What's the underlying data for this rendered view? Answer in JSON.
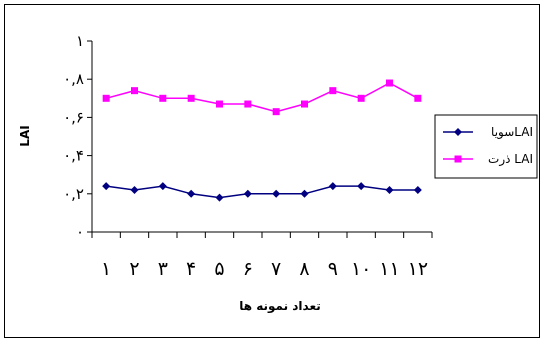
{
  "chart_data": {
    "type": "line",
    "title": "",
    "xlabel": "تعداد نمونه ها",
    "ylabel": "LAI",
    "categories": [
      "۱",
      "۲",
      "۳",
      "۴",
      "۵",
      "۶",
      "۷",
      "۸",
      "۹",
      "۱۰",
      "۱۱",
      "۱۲"
    ],
    "y_ticks": [
      0,
      0.2,
      0.4,
      0.6,
      0.8,
      1
    ],
    "y_tick_labels": [
      "۰",
      "۰,۲",
      "۰,۴",
      "۰,۶",
      "۰,۸",
      "۱"
    ],
    "ylim": [
      0,
      1
    ],
    "grid": false,
    "legend_position": "right",
    "series": [
      {
        "name": "سویاLAI",
        "color": "#000080",
        "marker": "diamond",
        "values": [
          0.24,
          0.22,
          0.24,
          0.2,
          0.18,
          0.2,
          0.2,
          0.2,
          0.24,
          0.24,
          0.22,
          0.22
        ]
      },
      {
        "name": "ذرت LAI",
        "color": "#ff00ff",
        "marker": "square",
        "values": [
          0.7,
          0.74,
          0.7,
          0.7,
          0.67,
          0.67,
          0.63,
          0.67,
          0.74,
          0.7,
          0.78,
          0.7
        ]
      }
    ]
  }
}
